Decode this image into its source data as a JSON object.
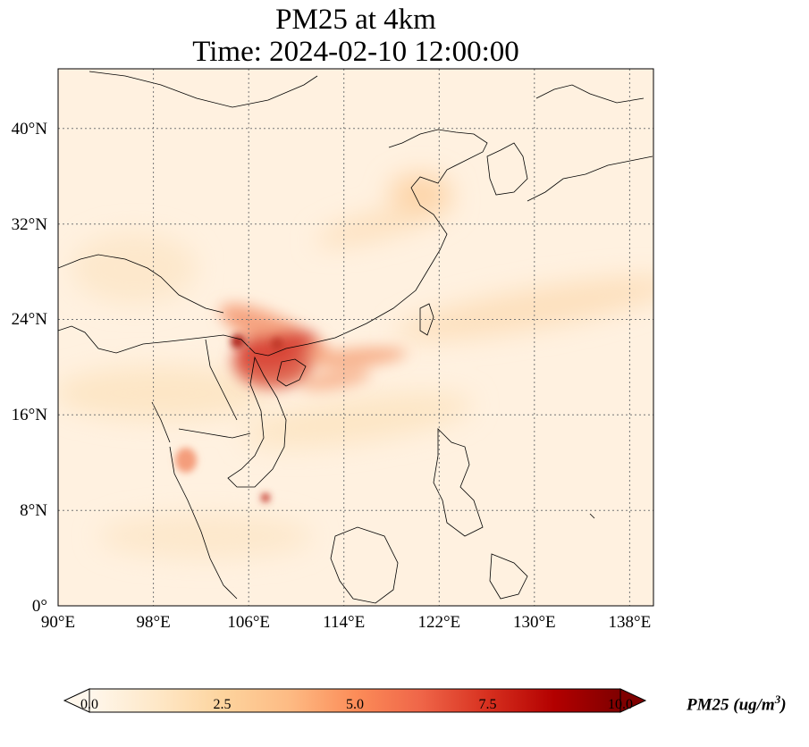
{
  "title": {
    "line1": "PM25 at 4km",
    "line2": "Time: 2024-02-10 12:00:00"
  },
  "map": {
    "extent": {
      "lon_min": 90,
      "lon_max": 140,
      "lat_min": 0,
      "lat_max": 45
    },
    "projection": "PlateCarree",
    "gridlines": "dotted",
    "lat_ticks": [
      {
        "value": 0,
        "label": "0°"
      },
      {
        "value": 8,
        "label": "8°N"
      },
      {
        "value": 16,
        "label": "16°N"
      },
      {
        "value": 24,
        "label": "24°N"
      },
      {
        "value": 32,
        "label": "32°N"
      },
      {
        "value": 40,
        "label": "40°N"
      }
    ],
    "lon_ticks": [
      {
        "value": 90,
        "label": "90°E"
      },
      {
        "value": 98,
        "label": "98°E"
      },
      {
        "value": 106,
        "label": "106°E"
      },
      {
        "value": 114,
        "label": "114°E"
      },
      {
        "value": 122,
        "label": "122°E"
      },
      {
        "value": 130,
        "label": "130°E"
      },
      {
        "value": 138,
        "label": "138°E"
      }
    ],
    "field_variable": "PM25",
    "colormap": "OrRd",
    "plumes": [
      {
        "name": "south-china-gulf-of-tonkin",
        "lon": 107.5,
        "lat": 22.0,
        "intensity": 6.5
      },
      {
        "name": "hanoi-core",
        "lon": 105.8,
        "lat": 21.7,
        "intensity": 7.5
      },
      {
        "name": "south-china-coast-outflow",
        "lon": 114.0,
        "lat": 20.5,
        "intensity": 4.5
      },
      {
        "name": "yellow-sea",
        "lon": 120.5,
        "lat": 35.2,
        "intensity": 2.0
      },
      {
        "name": "bangkok",
        "lon": 100.6,
        "lat": 13.2,
        "intensity": 4.0
      },
      {
        "name": "mekong-delta",
        "lon": 107.4,
        "lat": 9.0,
        "intensity": 6.5
      },
      {
        "name": "east-of-taiwan-band",
        "lon": 128.0,
        "lat": 24.5,
        "intensity": 2.0
      }
    ]
  },
  "colorbar": {
    "ticks": [
      "0.0",
      "2.5",
      "5.0",
      "7.5",
      "10.0"
    ],
    "tick_values": [
      0,
      2.5,
      5,
      7.5,
      10
    ],
    "range": [
      0,
      10
    ],
    "extend": "both",
    "label_prefix": "PM25 (ug/m",
    "label_exp": "3",
    "label_suffix": ")",
    "colors": [
      "#fff7ec",
      "#fee8c8",
      "#fdd49e",
      "#fdbb84",
      "#fc8d59",
      "#ef6548",
      "#d7301f",
      "#b30000",
      "#7f0000"
    ]
  }
}
